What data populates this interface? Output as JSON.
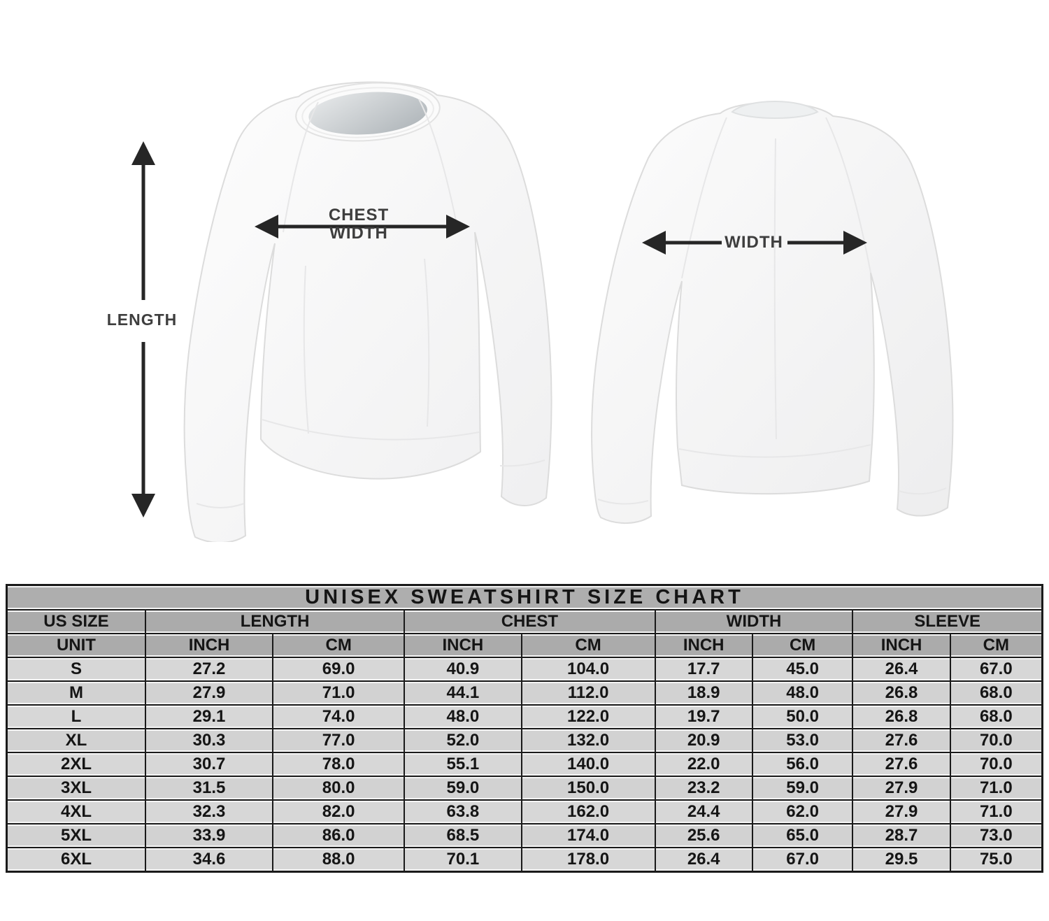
{
  "diagram": {
    "length_label": "LENGTH",
    "chest_label_line1": "CHEST",
    "chest_label_line2": "WIDTH",
    "back_width_label": "WIDTH",
    "arrow_color": "#262626",
    "label_color": "#3e3e3e"
  },
  "chart_data": {
    "type": "table",
    "title": "UNISEX SWEATSHIRT SIZE CHART",
    "column_groups": [
      {
        "label": "US SIZE",
        "span": 1
      },
      {
        "label": "LENGTH",
        "span": 2
      },
      {
        "label": "CHEST",
        "span": 2
      },
      {
        "label": "WIDTH",
        "span": 2
      },
      {
        "label": "SLEEVE",
        "span": 2
      }
    ],
    "unit_row": [
      "UNIT",
      "INCH",
      "CM",
      "INCH",
      "CM",
      "INCH",
      "CM",
      "INCH",
      "CM"
    ],
    "rows": [
      [
        "S",
        "27.2",
        "69.0",
        "40.9",
        "104.0",
        "17.7",
        "45.0",
        "26.4",
        "67.0"
      ],
      [
        "M",
        "27.9",
        "71.0",
        "44.1",
        "112.0",
        "18.9",
        "48.0",
        "26.8",
        "68.0"
      ],
      [
        "L",
        "29.1",
        "74.0",
        "48.0",
        "122.0",
        "19.7",
        "50.0",
        "26.8",
        "68.0"
      ],
      [
        "XL",
        "30.3",
        "77.0",
        "52.0",
        "132.0",
        "20.9",
        "53.0",
        "27.6",
        "70.0"
      ],
      [
        "2XL",
        "30.7",
        "78.0",
        "55.1",
        "140.0",
        "22.0",
        "56.0",
        "27.6",
        "70.0"
      ],
      [
        "3XL",
        "31.5",
        "80.0",
        "59.0",
        "150.0",
        "23.2",
        "59.0",
        "27.9",
        "71.0"
      ],
      [
        "4XL",
        "32.3",
        "82.0",
        "63.8",
        "162.0",
        "24.4",
        "62.0",
        "27.9",
        "71.0"
      ],
      [
        "5XL",
        "33.9",
        "86.0",
        "68.5",
        "174.0",
        "25.6",
        "65.0",
        "28.7",
        "73.0"
      ],
      [
        "6XL",
        "34.6",
        "88.0",
        "70.1",
        "178.0",
        "26.4",
        "67.0",
        "29.5",
        "75.0"
      ]
    ],
    "colors": {
      "header_bg": "#ababab",
      "row_bg": "#d7d7d7",
      "border": "#1a1a1a",
      "text": "#151515"
    }
  }
}
